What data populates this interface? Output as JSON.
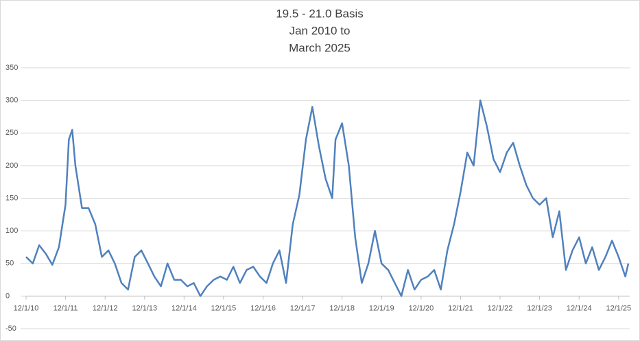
{
  "chart_data": {
    "type": "line",
    "title": [
      "19.5 - 21.0 Basis",
      "Jan 2010 to",
      "March 2025"
    ],
    "x": [
      "2010-12-01",
      "2011-02-01",
      "2011-04-01",
      "2011-06-01",
      "2011-08-01",
      "2011-10-01",
      "2011-12-01",
      "2012-01-01",
      "2012-02-01",
      "2012-03-01",
      "2012-05-01",
      "2012-07-01",
      "2012-09-01",
      "2012-11-01",
      "2013-01-01",
      "2013-03-01",
      "2013-05-01",
      "2013-07-01",
      "2013-09-01",
      "2013-11-01",
      "2014-01-01",
      "2014-03-01",
      "2014-05-01",
      "2014-07-01",
      "2014-09-01",
      "2014-11-01",
      "2015-01-01",
      "2015-03-01",
      "2015-05-01",
      "2015-07-01",
      "2015-09-01",
      "2015-11-01",
      "2016-01-01",
      "2016-03-01",
      "2016-05-01",
      "2016-07-01",
      "2016-09-01",
      "2016-11-01",
      "2017-01-01",
      "2017-03-01",
      "2017-05-01",
      "2017-07-01",
      "2017-09-01",
      "2017-11-01",
      "2018-01-01",
      "2018-03-01",
      "2018-05-01",
      "2018-07-01",
      "2018-09-01",
      "2018-10-01",
      "2018-12-01",
      "2019-02-01",
      "2019-04-01",
      "2019-06-01",
      "2019-08-01",
      "2019-10-01",
      "2019-12-01",
      "2020-02-01",
      "2020-04-01",
      "2020-06-01",
      "2020-08-01",
      "2020-10-01",
      "2020-12-01",
      "2021-02-01",
      "2021-04-01",
      "2021-06-01",
      "2021-08-01",
      "2021-10-01",
      "2021-12-01",
      "2022-02-01",
      "2022-04-01",
      "2022-06-01",
      "2022-08-01",
      "2022-10-01",
      "2022-12-01",
      "2023-02-01",
      "2023-04-01",
      "2023-06-01",
      "2023-08-01",
      "2023-10-01",
      "2023-12-01",
      "2024-02-01",
      "2024-04-01",
      "2024-06-01",
      "2024-08-01",
      "2024-10-01",
      "2024-12-01",
      "2025-02-01",
      "2025-04-01",
      "2025-06-01",
      "2025-08-01",
      "2025-10-01",
      "2025-12-01",
      "2026-02-01",
      "2026-03-01"
    ],
    "series": [
      {
        "color": "#4f81bd",
        "values": [
          60,
          50,
          78,
          65,
          48,
          75,
          140,
          240,
          255,
          200,
          135,
          135,
          110,
          60,
          70,
          50,
          20,
          10,
          60,
          70,
          50,
          30,
          15,
          50,
          25,
          25,
          15,
          20,
          0,
          15,
          25,
          30,
          25,
          45,
          20,
          40,
          45,
          30,
          20,
          50,
          70,
          20,
          110,
          155,
          240,
          290,
          230,
          180,
          150,
          240,
          265,
          200,
          90,
          20,
          50,
          100,
          50,
          40,
          20,
          0,
          40,
          10,
          25,
          30,
          40,
          10,
          70,
          110,
          160,
          220,
          200,
          300,
          260,
          210,
          190,
          220,
          235,
          200,
          170,
          150,
          140,
          150,
          90,
          130,
          40,
          70,
          90,
          50,
          75,
          40,
          60,
          85,
          60,
          30,
          50
        ]
      }
    ],
    "xlim": [
      "2010-12-01",
      "2026-03-01"
    ],
    "xticks": [
      {
        "value": "2010-12-01",
        "label": "12/1/10"
      },
      {
        "value": "2011-12-01",
        "label": "12/1/11"
      },
      {
        "value": "2012-12-01",
        "label": "12/1/12"
      },
      {
        "value": "2013-12-01",
        "label": "12/1/13"
      },
      {
        "value": "2014-12-01",
        "label": "12/1/14"
      },
      {
        "value": "2015-12-01",
        "label": "12/1/15"
      },
      {
        "value": "2016-12-01",
        "label": "12/1/16"
      },
      {
        "value": "2017-12-01",
        "label": "12/1/17"
      },
      {
        "value": "2018-12-01",
        "label": "12/1/18"
      },
      {
        "value": "2019-12-01",
        "label": "12/1/19"
      },
      {
        "value": "2020-12-01",
        "label": "12/1/20"
      },
      {
        "value": "2021-12-01",
        "label": "12/1/21"
      },
      {
        "value": "2022-12-01",
        "label": "12/1/22"
      },
      {
        "value": "2023-12-01",
        "label": "12/1/23"
      },
      {
        "value": "2024-12-01",
        "label": "12/1/24"
      },
      {
        "value": "2025-12-01",
        "label": "12/1/25"
      }
    ],
    "ylim": [
      -50,
      350
    ],
    "yticks": [
      -50,
      0,
      50,
      100,
      150,
      200,
      250,
      300,
      350
    ],
    "grid": true
  }
}
